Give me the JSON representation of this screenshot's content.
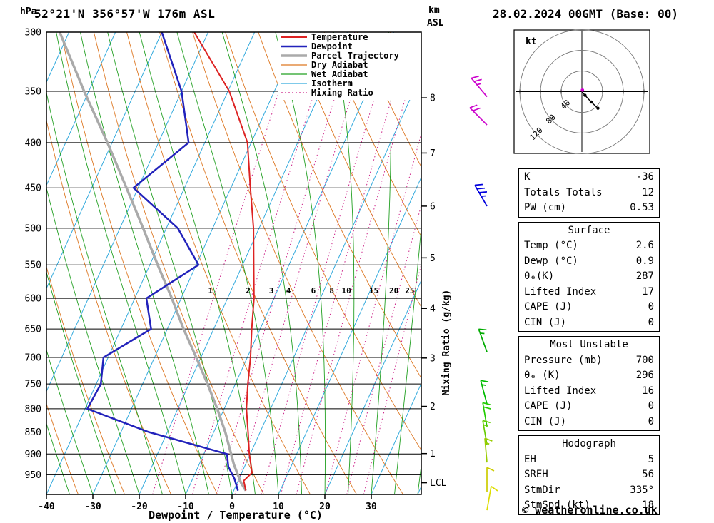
{
  "header": {
    "station_title": "52°21'N 356°57'W 176m ASL",
    "run_title": "28.02.2024 00GMT (Base: 00)",
    "pressure_axis_unit": "hPa",
    "altitude_axis_unit_line1": "km",
    "altitude_axis_unit_line2": "ASL"
  },
  "axes": {
    "xlabel": "Dewpoint / Temperature (°C)",
    "right_label": "Mixing Ratio (g/kg)",
    "pressure_ticks": [
      300,
      350,
      400,
      450,
      500,
      550,
      600,
      650,
      700,
      750,
      800,
      850,
      900,
      950
    ],
    "temp_ticks": [
      -40,
      -30,
      -20,
      -10,
      0,
      10,
      20,
      30
    ],
    "km_ticks": [
      {
        "label": "8",
        "p": 356
      },
      {
        "label": "7",
        "p": 411
      },
      {
        "label": "6",
        "p": 472
      },
      {
        "label": "5",
        "p": 540
      },
      {
        "label": "4",
        "p": 616
      },
      {
        "label": "3",
        "p": 701
      },
      {
        "label": "2",
        "p": 795
      },
      {
        "label": "1",
        "p": 899
      },
      {
        "label": "LCL",
        "p": 970
      }
    ]
  },
  "legend": {
    "entries": [
      {
        "label": "Temperature",
        "color": "#dd2222",
        "dash": "",
        "width": 2
      },
      {
        "label": "Dewpoint",
        "color": "#2222bb",
        "dash": "",
        "width": 2.5
      },
      {
        "label": "Parcel Trajectory",
        "color": "#aaaaaa",
        "dash": "",
        "width": 3.5
      },
      {
        "label": "Dry Adiabat",
        "color": "#dd7722",
        "dash": "",
        "width": 1.2
      },
      {
        "label": "Wet Adiabat",
        "color": "#22a022",
        "dash": "",
        "width": 1.2
      },
      {
        "label": "Isotherm",
        "color": "#33aadd",
        "dash": "",
        "width": 1.2
      },
      {
        "label": "Mixing Ratio",
        "color": "#cc2288",
        "dash": "2 3",
        "width": 1.2
      }
    ]
  },
  "chart_data": {
    "type": "skewt",
    "title": "52°21'N 356°57'W 176m ASL  28.02.2024 00GMT (Base: 00)",
    "pressure_range": [
      300,
      1000
    ],
    "skew": 0.45,
    "isotherm_step_c": 10,
    "dry_adiabat_step_k": 10,
    "wet_adiabat_step_c": 5,
    "mixing_ratio_lines_gkg": [
      1,
      2,
      3,
      4,
      6,
      8,
      10,
      15,
      20,
      25
    ],
    "series": [
      {
        "name": "Temperature",
        "color": "#dd2222",
        "width": 2,
        "points": [
          [
            990,
            2.6
          ],
          [
            965,
            1.2
          ],
          [
            945,
            2.2
          ],
          [
            900,
            -0.2
          ],
          [
            850,
            -2.6
          ],
          [
            800,
            -5.2
          ],
          [
            750,
            -7.3
          ],
          [
            700,
            -9.3
          ],
          [
            650,
            -11.8
          ],
          [
            600,
            -14.3
          ],
          [
            550,
            -17.6
          ],
          [
            500,
            -21.2
          ],
          [
            450,
            -25.8
          ],
          [
            400,
            -30.8
          ],
          [
            350,
            -39.7
          ],
          [
            300,
            -53
          ]
        ]
      },
      {
        "name": "Dewpoint",
        "color": "#2222bb",
        "width": 2.5,
        "points": [
          [
            990,
            0.9
          ],
          [
            960,
            -1
          ],
          [
            930,
            -3.5
          ],
          [
            900,
            -5
          ],
          [
            850,
            -24
          ],
          [
            800,
            -39.5
          ],
          [
            750,
            -39
          ],
          [
            700,
            -41
          ],
          [
            650,
            -33.5
          ],
          [
            600,
            -37.5
          ],
          [
            550,
            -29.5
          ],
          [
            500,
            -37.5
          ],
          [
            450,
            -51
          ],
          [
            400,
            -43.5
          ],
          [
            350,
            -50
          ],
          [
            300,
            -60
          ]
        ]
      },
      {
        "name": "Parcel Trajectory",
        "color": "#aaaaaa",
        "width": 3.5,
        "points": [
          [
            990,
            2.6
          ],
          [
            970,
            0.8
          ],
          [
            925,
            -2.5
          ],
          [
            850,
            -7.5
          ],
          [
            800,
            -11.5
          ],
          [
            750,
            -16
          ],
          [
            700,
            -21
          ],
          [
            650,
            -26.5
          ],
          [
            600,
            -32
          ],
          [
            550,
            -38.3
          ],
          [
            500,
            -45
          ],
          [
            450,
            -52.5
          ],
          [
            400,
            -61
          ],
          [
            350,
            -71
          ],
          [
            300,
            -82
          ]
        ]
      }
    ]
  },
  "wind_barbs": [
    {
      "p": 355,
      "speed": 25,
      "dir": 320,
      "color": "#cc00cc"
    },
    {
      "p": 382,
      "speed": 20,
      "dir": 315,
      "color": "#cc00cc"
    },
    {
      "p": 472,
      "speed": 35,
      "dir": 330,
      "color": "#0000dd"
    },
    {
      "p": 690,
      "speed": 15,
      "dir": 340,
      "color": "#00aa00"
    },
    {
      "p": 790,
      "speed": 15,
      "dir": 345,
      "color": "#00bb00"
    },
    {
      "p": 838,
      "speed": 20,
      "dir": 350,
      "color": "#22cc00"
    },
    {
      "p": 878,
      "speed": 15,
      "dir": 350,
      "color": "#66cc00"
    },
    {
      "p": 920,
      "speed": 15,
      "dir": 355,
      "color": "#99cc00"
    },
    {
      "p": 993,
      "speed": 10,
      "dir": 0,
      "color": "#cccc00"
    },
    {
      "p": 1042,
      "speed": 10,
      "dir": 10,
      "color": "#dddd00"
    }
  ],
  "hodograph": {
    "unit_label": "kt",
    "rings_kt": [
      40,
      80,
      120
    ],
    "trace_kt": [
      [
        0,
        0
      ],
      [
        6,
        7
      ],
      [
        18,
        20
      ],
      [
        31,
        32
      ]
    ],
    "marker_kt": [
      1,
      -3
    ],
    "marker_color": "#cc00cc"
  },
  "stats_panels": [
    {
      "header": "",
      "rows": [
        [
          "K",
          "-36"
        ],
        [
          "Totals Totals",
          "12"
        ],
        [
          "PW (cm)",
          "0.53"
        ]
      ]
    },
    {
      "header": "Surface",
      "rows": [
        [
          "Temp (°C)",
          "2.6"
        ],
        [
          "Dewp (°C)",
          "0.9"
        ],
        [
          "θₑ(K)",
          "287"
        ],
        [
          "Lifted Index",
          "17"
        ],
        [
          "CAPE (J)",
          "0"
        ],
        [
          "CIN (J)",
          "0"
        ]
      ]
    },
    {
      "header": "Most Unstable",
      "rows": [
        [
          "Pressure (mb)",
          "700"
        ],
        [
          "θₑ (K)",
          "296"
        ],
        [
          "Lifted Index",
          "16"
        ],
        [
          "CAPE (J)",
          "0"
        ],
        [
          "CIN (J)",
          "0"
        ]
      ]
    },
    {
      "header": "Hodograph",
      "rows": [
        [
          "EH",
          "5"
        ],
        [
          "SREH",
          "56"
        ],
        [
          "StmDir",
          "335°"
        ],
        [
          "StmSpd (kt)",
          "18"
        ]
      ]
    }
  ],
  "footer": {
    "copyright": "© weatheronline.co.uk"
  }
}
